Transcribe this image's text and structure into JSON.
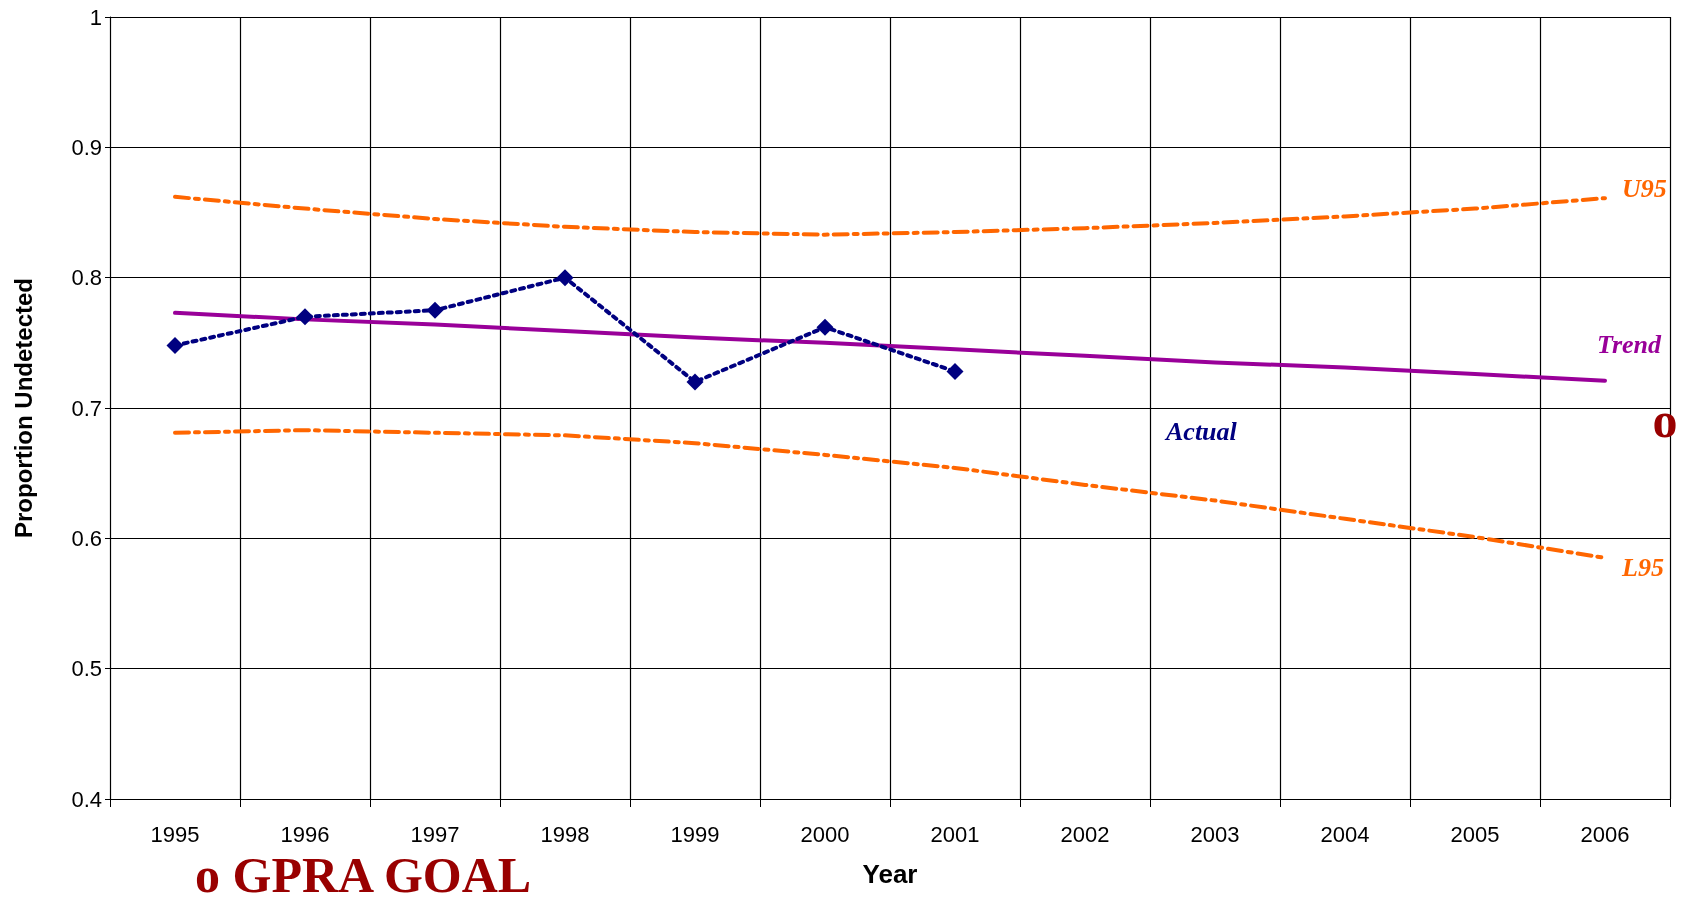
{
  "chart_data": {
    "type": "line",
    "xlabel": "Year",
    "ylabel": "Proportion Undetected",
    "categories": [
      "1995",
      "1996",
      "1997",
      "1998",
      "1999",
      "2000",
      "2001",
      "2002",
      "2003",
      "2004",
      "2005",
      "2006"
    ],
    "series": [
      {
        "name": "U95",
        "color": "#ff6600",
        "line_style": "dashed",
        "marker": "none",
        "values": [
          0.862,
          0.853,
          0.845,
          0.839,
          0.835,
          0.833,
          0.835,
          0.838,
          0.842,
          0.847,
          0.853,
          0.861
        ]
      },
      {
        "name": "Trend",
        "color": "#990099",
        "line_style": "solid",
        "marker": "none",
        "values": [
          0.773,
          0.768,
          0.764,
          0.759,
          0.754,
          0.75,
          0.745,
          0.74,
          0.735,
          0.731,
          0.726,
          0.721
        ]
      },
      {
        "name": "Actual",
        "color": "#000080",
        "line_style": "dotted",
        "marker": "diamond",
        "values": [
          0.748,
          0.77,
          0.775,
          0.8,
          0.72,
          0.762,
          0.728,
          null,
          null,
          null,
          null,
          null
        ]
      },
      {
        "name": "L95",
        "color": "#ff6600",
        "line_style": "dashed",
        "marker": "none",
        "values": [
          0.681,
          0.683,
          0.681,
          0.679,
          0.673,
          0.664,
          0.654,
          0.641,
          0.629,
          0.615,
          0.601,
          0.585
        ]
      }
    ],
    "ylim": [
      0.4,
      1
    ],
    "yticks": [
      0.4,
      0.5,
      0.6,
      0.7,
      0.8,
      0.9,
      1
    ],
    "grid": true,
    "legend": false,
    "annotations": [
      "o GPRA GOAL",
      "o"
    ]
  }
}
